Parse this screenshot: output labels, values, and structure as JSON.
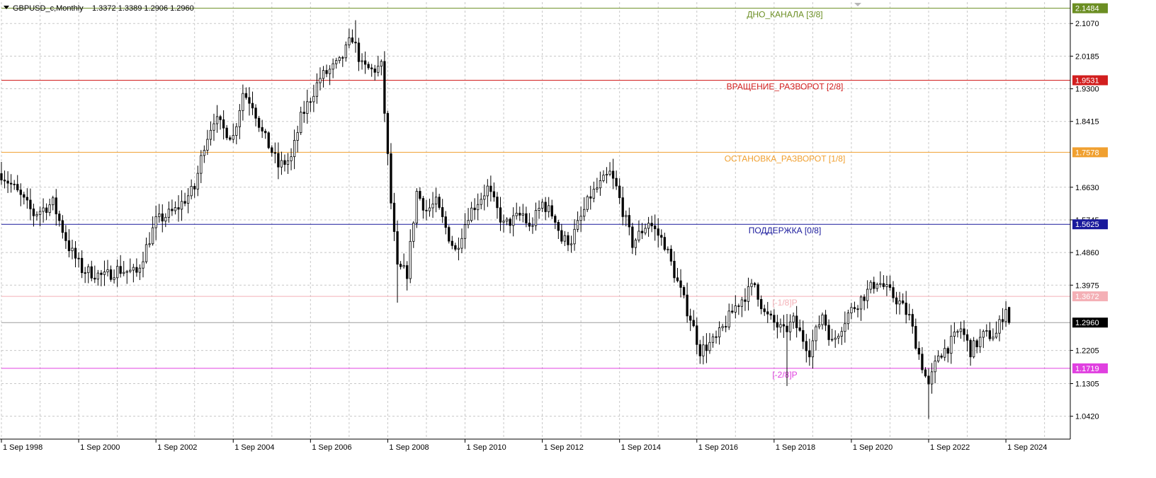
{
  "header": {
    "symbol": "GBPUSD_c,Monthly",
    "ohlc": "1.3372 1.3389 1.2906 1.2960"
  },
  "colors": {
    "background": "#ffffff",
    "grid": "#c8c8c8",
    "candle": "#000000",
    "channel_bottom": "#6b8e23",
    "rotation": "#d21e1e",
    "stop": "#f0a030",
    "support": "#1a1a9c",
    "minus1": "#f4b0b6",
    "minus2": "#e040e0",
    "price": "#9e9e9e"
  },
  "chart_data": {
    "type": "candlestick",
    "timeframe": "Monthly",
    "grid": true,
    "ylim": [
      0.98,
      2.165
    ],
    "x_start": "1998-09",
    "x_end": "2026-05",
    "y_ticks": [
      "2.1070",
      "2.0185",
      "1.9300",
      "1.8415",
      "1.6630",
      "1.5745",
      "1.4860",
      "1.3975",
      "1.2205",
      "1.1305",
      "1.0420"
    ],
    "x_ticks": [
      {
        "date": "1998-09",
        "label": "1 Sep 1998"
      },
      {
        "date": "2000-09",
        "label": "1 Sep 2000"
      },
      {
        "date": "2002-09",
        "label": "1 Sep 2002"
      },
      {
        "date": "2004-09",
        "label": "1 Sep 2004"
      },
      {
        "date": "2006-09",
        "label": "1 Sep 2006"
      },
      {
        "date": "2008-09",
        "label": "1 Sep 2008"
      },
      {
        "date": "2010-09",
        "label": "1 Sep 2010"
      },
      {
        "date": "2012-09",
        "label": "1 Sep 2012"
      },
      {
        "date": "2014-09",
        "label": "1 Sep 2014"
      },
      {
        "date": "2016-09",
        "label": "1 Sep 2016"
      },
      {
        "date": "2018-09",
        "label": "1 Sep 2018"
      },
      {
        "date": "2020-09",
        "label": "1 Sep 2020"
      },
      {
        "date": "2022-09",
        "label": "1 Sep 2022"
      },
      {
        "date": "2024-09",
        "label": "1 Sep 2024"
      }
    ],
    "levels": [
      {
        "value": 2.1484,
        "label": "2.1484",
        "name": "ДНО_КАНАЛА [3/8]",
        "color_key": "channel_bottom"
      },
      {
        "value": 1.9531,
        "label": "1.9531",
        "name": "ВРАЩЕНИЕ_РАЗВОРОТ [2/8]",
        "color_key": "rotation"
      },
      {
        "value": 1.7578,
        "label": "1.7578",
        "name": "ОСТАНОВКА_РАЗВОРОТ [1/8]",
        "color_key": "stop"
      },
      {
        "value": 1.5625,
        "label": "1.5625",
        "name": "ПОДДЕРЖКА [0/8]",
        "color_key": "support"
      },
      {
        "value": 1.3672,
        "label": "1.3672",
        "name": "[-1/8]P",
        "color_key": "minus1"
      },
      {
        "value": 1.1719,
        "label": "1.1719",
        "name": "[-2/8]P",
        "color_key": "minus2"
      }
    ],
    "current_price": {
      "value": 1.296,
      "label": "1.2960"
    },
    "anchors": [
      {
        "date": "1998-09",
        "close": 1.7
      },
      {
        "date": "1999-01",
        "close": 1.66
      },
      {
        "date": "1999-07",
        "close": 1.59
      },
      {
        "date": "2000-01",
        "close": 1.62
      },
      {
        "date": "2000-06",
        "close": 1.5
      },
      {
        "date": "2000-10",
        "close": 1.44
      },
      {
        "date": "2001-05",
        "close": 1.42
      },
      {
        "date": "2001-09",
        "close": 1.44
      },
      {
        "date": "2002-03",
        "close": 1.43
      },
      {
        "date": "2002-09",
        "close": 1.57
      },
      {
        "date": "2003-03",
        "close": 1.6
      },
      {
        "date": "2003-09",
        "close": 1.66
      },
      {
        "date": "2003-12",
        "close": 1.78
      },
      {
        "date": "2004-03",
        "close": 1.85
      },
      {
        "date": "2004-06",
        "close": 1.82
      },
      {
        "date": "2004-09",
        "close": 1.8
      },
      {
        "date": "2004-12",
        "close": 1.92
      },
      {
        "date": "2005-03",
        "close": 1.89
      },
      {
        "date": "2005-06",
        "close": 1.81
      },
      {
        "date": "2005-09",
        "close": 1.76
      },
      {
        "date": "2005-11",
        "close": 1.72
      },
      {
        "date": "2006-03",
        "close": 1.74
      },
      {
        "date": "2006-06",
        "close": 1.85
      },
      {
        "date": "2006-12",
        "close": 1.96
      },
      {
        "date": "2007-06",
        "close": 2.0
      },
      {
        "date": "2007-10",
        "close": 2.07
      },
      {
        "date": "2008-01",
        "close": 1.99
      },
      {
        "date": "2008-04",
        "close": 1.98
      },
      {
        "date": "2008-07",
        "close": 1.99
      },
      {
        "date": "2008-10",
        "close": 1.62
      },
      {
        "date": "2008-12",
        "close": 1.44
      },
      {
        "date": "2009-01",
        "close": 1.44
      },
      {
        "date": "2009-03",
        "close": 1.43
      },
      {
        "date": "2009-06",
        "close": 1.65
      },
      {
        "date": "2009-09",
        "close": 1.6
      },
      {
        "date": "2009-12",
        "close": 1.62
      },
      {
        "date": "2010-04",
        "close": 1.53
      },
      {
        "date": "2010-06",
        "close": 1.49
      },
      {
        "date": "2010-10",
        "close": 1.59
      },
      {
        "date": "2011-04",
        "close": 1.66
      },
      {
        "date": "2011-09",
        "close": 1.56
      },
      {
        "date": "2012-03",
        "close": 1.59
      },
      {
        "date": "2012-05",
        "close": 1.55
      },
      {
        "date": "2012-09",
        "close": 1.62
      },
      {
        "date": "2013-01",
        "close": 1.58
      },
      {
        "date": "2013-03",
        "close": 1.52
      },
      {
        "date": "2013-06",
        "close": 1.52
      },
      {
        "date": "2013-12",
        "close": 1.64
      },
      {
        "date": "2014-06",
        "close": 1.7
      },
      {
        "date": "2014-08",
        "close": 1.66
      },
      {
        "date": "2014-10",
        "close": 1.6
      },
      {
        "date": "2015-01",
        "close": 1.51
      },
      {
        "date": "2015-06",
        "close": 1.57
      },
      {
        "date": "2015-11",
        "close": 1.51
      },
      {
        "date": "2016-02",
        "close": 1.43
      },
      {
        "date": "2016-06",
        "close": 1.33
      },
      {
        "date": "2016-07",
        "close": 1.31
      },
      {
        "date": "2016-10",
        "close": 1.22
      },
      {
        "date": "2017-03",
        "close": 1.25
      },
      {
        "date": "2017-09",
        "close": 1.34
      },
      {
        "date": "2018-03",
        "close": 1.4
      },
      {
        "date": "2018-06",
        "close": 1.32
      },
      {
        "date": "2018-12",
        "close": 1.27
      },
      {
        "date": "2019-03",
        "close": 1.3
      },
      {
        "date": "2019-08",
        "close": 1.22
      },
      {
        "date": "2019-12",
        "close": 1.32
      },
      {
        "date": "2020-03",
        "close": 1.24
      },
      {
        "date": "2020-08",
        "close": 1.32
      },
      {
        "date": "2020-12",
        "close": 1.36
      },
      {
        "date": "2021-05",
        "close": 1.41
      },
      {
        "date": "2021-12",
        "close": 1.35
      },
      {
        "date": "2022-03",
        "close": 1.31
      },
      {
        "date": "2022-06",
        "close": 1.21
      },
      {
        "date": "2022-09",
        "close": 1.12
      },
      {
        "date": "2022-12",
        "close": 1.21
      },
      {
        "date": "2023-03",
        "close": 1.23
      },
      {
        "date": "2023-07",
        "close": 1.28
      },
      {
        "date": "2023-10",
        "close": 1.22
      },
      {
        "date": "2024-02",
        "close": 1.26
      },
      {
        "date": "2024-06",
        "close": 1.265
      },
      {
        "date": "2024-09",
        "close": 1.34
      },
      {
        "date": "2024-10",
        "close": 1.296
      }
    ]
  }
}
